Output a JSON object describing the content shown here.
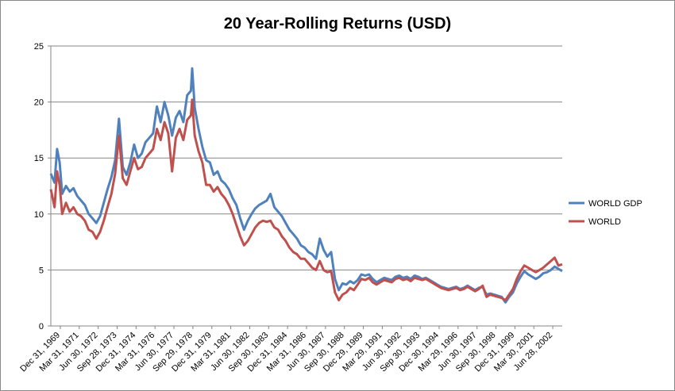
{
  "chart_data": {
    "type": "line",
    "title": "20 Year-Rolling Returns (USD)",
    "xlabel": "",
    "ylabel": "",
    "ylim": [
      0,
      25
    ],
    "yticks": [
      "0",
      "5",
      "10",
      "15",
      "20",
      "25"
    ],
    "grid": true,
    "legend_position": "right",
    "x_tick_labels": [
      "Dec 31, 1969",
      "Mar 31, 1971",
      "Jun 30, 1972",
      "Sep 28, 1973",
      "Dec 31, 1974",
      "Mar 31, 1976",
      "Jun 30, 1977",
      "Sep 29, 1978",
      "Dec 31, 1979",
      "Mar 31, 1981",
      "Jun 30, 1982",
      "Sep 30, 1983",
      "Dec 31, 1984",
      "Mar 31, 1986",
      "Jun 30, 1987",
      "Sep 30, 1988",
      "Dec 29, 1989",
      "Mar 29, 1991",
      "Jun 30, 1992",
      "Sep 30, 1993",
      "Dec 30, 1994",
      "Mar 29, 1996",
      "Jun 30, 1997",
      "Sep 30, 1998",
      "Dec 31, 1999",
      "Mar 30, 2001",
      "Jun 28, 2002"
    ],
    "x_start": "1969-12-31",
    "x_end": "2003-09-30",
    "series": [
      {
        "name": "WORLD GDP",
        "color": "#4f81bd",
        "points": [
          [
            "1969-12-31",
            13.6
          ],
          [
            "1970-03-31",
            12.8
          ],
          [
            "1970-05-31",
            15.8
          ],
          [
            "1970-07-31",
            14.6
          ],
          [
            "1970-09-30",
            11.8
          ],
          [
            "1970-12-31",
            12.5
          ],
          [
            "1971-03-31",
            12.0
          ],
          [
            "1971-06-30",
            12.3
          ],
          [
            "1971-09-30",
            11.6
          ],
          [
            "1971-12-31",
            11.2
          ],
          [
            "1972-03-31",
            10.8
          ],
          [
            "1972-06-30",
            10.0
          ],
          [
            "1972-09-30",
            9.6
          ],
          [
            "1972-12-31",
            9.2
          ],
          [
            "1973-03-31",
            9.8
          ],
          [
            "1973-06-30",
            11.0
          ],
          [
            "1973-09-28",
            12.2
          ],
          [
            "1973-12-31",
            13.3
          ],
          [
            "1974-03-31",
            14.8
          ],
          [
            "1974-06-30",
            18.5
          ],
          [
            "1974-09-30",
            14.2
          ],
          [
            "1974-12-31",
            13.5
          ],
          [
            "1975-03-31",
            14.6
          ],
          [
            "1975-06-30",
            16.2
          ],
          [
            "1975-09-30",
            15.0
          ],
          [
            "1975-12-31",
            15.4
          ],
          [
            "1976-03-31",
            16.4
          ],
          [
            "1976-06-30",
            16.8
          ],
          [
            "1976-09-30",
            17.2
          ],
          [
            "1976-12-31",
            19.6
          ],
          [
            "1977-03-31",
            18.2
          ],
          [
            "1977-06-30",
            20.0
          ],
          [
            "1977-09-30",
            18.8
          ],
          [
            "1977-12-31",
            17.0
          ],
          [
            "1978-03-31",
            18.6
          ],
          [
            "1978-06-30",
            19.2
          ],
          [
            "1978-09-29",
            18.2
          ],
          [
            "1978-12-31",
            20.6
          ],
          [
            "1979-03-31",
            21.0
          ],
          [
            "1979-04-30",
            23.0
          ],
          [
            "1979-06-30",
            19.5
          ],
          [
            "1979-09-30",
            17.6
          ],
          [
            "1979-12-31",
            16.0
          ],
          [
            "1980-03-31",
            14.8
          ],
          [
            "1980-06-30",
            14.6
          ],
          [
            "1980-09-30",
            13.5
          ],
          [
            "1980-12-31",
            13.8
          ],
          [
            "1981-03-31",
            13.0
          ],
          [
            "1981-06-30",
            12.7
          ],
          [
            "1981-09-30",
            12.2
          ],
          [
            "1981-12-31",
            11.4
          ],
          [
            "1982-03-31",
            10.8
          ],
          [
            "1982-06-30",
            9.6
          ],
          [
            "1982-09-30",
            8.6
          ],
          [
            "1982-12-31",
            9.4
          ],
          [
            "1983-03-31",
            10.0
          ],
          [
            "1983-06-30",
            10.5
          ],
          [
            "1983-09-30",
            10.8
          ],
          [
            "1983-12-31",
            11.0
          ],
          [
            "1984-03-31",
            11.2
          ],
          [
            "1984-06-30",
            11.8
          ],
          [
            "1984-09-30",
            10.6
          ],
          [
            "1984-12-31",
            10.2
          ],
          [
            "1985-03-31",
            9.8
          ],
          [
            "1985-06-30",
            9.2
          ],
          [
            "1985-09-30",
            8.6
          ],
          [
            "1985-12-31",
            8.2
          ],
          [
            "1986-03-31",
            7.8
          ],
          [
            "1986-06-30",
            7.2
          ],
          [
            "1986-09-30",
            7.0
          ],
          [
            "1986-12-31",
            6.6
          ],
          [
            "1987-03-31",
            6.4
          ],
          [
            "1987-06-30",
            6.0
          ],
          [
            "1987-09-30",
            7.8
          ],
          [
            "1987-12-31",
            6.8
          ],
          [
            "1988-03-31",
            6.2
          ],
          [
            "1988-06-30",
            6.6
          ],
          [
            "1988-09-30",
            4.2
          ],
          [
            "1988-12-31",
            3.2
          ],
          [
            "1989-03-31",
            3.8
          ],
          [
            "1989-06-30",
            3.7
          ],
          [
            "1989-09-30",
            4.0
          ],
          [
            "1989-12-29",
            3.8
          ],
          [
            "1990-03-31",
            4.1
          ],
          [
            "1990-06-30",
            4.6
          ],
          [
            "1990-09-30",
            4.5
          ],
          [
            "1990-12-31",
            4.6
          ],
          [
            "1991-03-29",
            4.2
          ],
          [
            "1991-06-30",
            3.9
          ],
          [
            "1991-09-30",
            4.1
          ],
          [
            "1991-12-31",
            4.3
          ],
          [
            "1992-03-31",
            4.2
          ],
          [
            "1992-06-30",
            4.1
          ],
          [
            "1992-09-30",
            4.4
          ],
          [
            "1992-12-31",
            4.5
          ],
          [
            "1993-03-31",
            4.3
          ],
          [
            "1993-06-30",
            4.4
          ],
          [
            "1993-09-30",
            4.2
          ],
          [
            "1993-12-31",
            4.5
          ],
          [
            "1994-03-31",
            4.4
          ],
          [
            "1994-06-30",
            4.2
          ],
          [
            "1994-09-30",
            4.3
          ],
          [
            "1994-12-30",
            4.1
          ],
          [
            "1995-03-31",
            3.9
          ],
          [
            "1995-06-30",
            3.7
          ],
          [
            "1995-09-30",
            3.5
          ],
          [
            "1995-12-31",
            3.4
          ],
          [
            "1996-03-29",
            3.3
          ],
          [
            "1996-06-30",
            3.4
          ],
          [
            "1996-09-30",
            3.5
          ],
          [
            "1996-12-31",
            3.3
          ],
          [
            "1997-03-31",
            3.4
          ],
          [
            "1997-06-30",
            3.6
          ],
          [
            "1997-09-30",
            3.4
          ],
          [
            "1997-12-31",
            3.2
          ],
          [
            "1998-03-31",
            3.4
          ],
          [
            "1998-06-30",
            3.5
          ],
          [
            "1998-09-30",
            2.8
          ],
          [
            "1998-12-31",
            2.9
          ],
          [
            "1999-03-31",
            2.8
          ],
          [
            "1999-06-30",
            2.7
          ],
          [
            "1999-09-30",
            2.6
          ],
          [
            "1999-12-31",
            2.1
          ],
          [
            "2000-03-31",
            2.6
          ],
          [
            "2000-06-30",
            3.0
          ],
          [
            "2000-09-30",
            3.8
          ],
          [
            "2000-12-31",
            4.4
          ],
          [
            "2001-03-30",
            4.9
          ],
          [
            "2001-06-30",
            4.6
          ],
          [
            "2001-09-30",
            4.4
          ],
          [
            "2001-12-31",
            4.2
          ],
          [
            "2002-03-31",
            4.4
          ],
          [
            "2002-06-28",
            4.7
          ],
          [
            "2002-09-30",
            4.8
          ],
          [
            "2002-12-31",
            5.0
          ],
          [
            "2003-03-31",
            5.3
          ],
          [
            "2003-06-30",
            5.1
          ],
          [
            "2003-09-30",
            4.9
          ]
        ]
      },
      {
        "name": "WORLD",
        "color": "#c0504d",
        "points": [
          [
            "1969-12-31",
            12.2
          ],
          [
            "1970-03-31",
            10.6
          ],
          [
            "1970-05-31",
            13.8
          ],
          [
            "1970-07-31",
            12.6
          ],
          [
            "1970-09-30",
            10.0
          ],
          [
            "1970-12-31",
            11.0
          ],
          [
            "1971-03-31",
            10.2
          ],
          [
            "1971-06-30",
            10.6
          ],
          [
            "1971-09-30",
            10.0
          ],
          [
            "1971-12-31",
            9.8
          ],
          [
            "1972-03-31",
            9.4
          ],
          [
            "1972-06-30",
            8.6
          ],
          [
            "1972-09-30",
            8.4
          ],
          [
            "1972-12-31",
            7.8
          ],
          [
            "1973-03-31",
            8.4
          ],
          [
            "1973-06-30",
            9.4
          ],
          [
            "1973-09-28",
            10.6
          ],
          [
            "1973-12-31",
            11.8
          ],
          [
            "1974-03-31",
            13.6
          ],
          [
            "1974-06-30",
            17.0
          ],
          [
            "1974-09-30",
            13.2
          ],
          [
            "1974-12-31",
            12.6
          ],
          [
            "1975-03-31",
            13.8
          ],
          [
            "1975-06-30",
            15.0
          ],
          [
            "1975-09-30",
            14.0
          ],
          [
            "1975-12-31",
            14.2
          ],
          [
            "1976-03-31",
            15.0
          ],
          [
            "1976-06-30",
            15.4
          ],
          [
            "1976-09-30",
            15.8
          ],
          [
            "1976-12-31",
            17.6
          ],
          [
            "1977-03-31",
            16.6
          ],
          [
            "1977-06-30",
            18.2
          ],
          [
            "1977-09-30",
            17.2
          ],
          [
            "1977-12-31",
            13.8
          ],
          [
            "1978-03-31",
            16.8
          ],
          [
            "1978-06-30",
            17.6
          ],
          [
            "1978-09-29",
            16.6
          ],
          [
            "1978-12-31",
            18.4
          ],
          [
            "1979-03-31",
            18.8
          ],
          [
            "1979-04-30",
            20.2
          ],
          [
            "1979-06-30",
            17.0
          ],
          [
            "1979-09-30",
            15.6
          ],
          [
            "1979-12-31",
            14.6
          ],
          [
            "1980-03-31",
            12.6
          ],
          [
            "1980-06-30",
            12.6
          ],
          [
            "1980-09-30",
            12.0
          ],
          [
            "1980-12-31",
            12.4
          ],
          [
            "1981-03-31",
            11.8
          ],
          [
            "1981-06-30",
            11.4
          ],
          [
            "1981-09-30",
            10.8
          ],
          [
            "1981-12-31",
            10.0
          ],
          [
            "1982-03-31",
            9.0
          ],
          [
            "1982-06-30",
            8.0
          ],
          [
            "1982-09-30",
            7.2
          ],
          [
            "1982-12-31",
            7.6
          ],
          [
            "1983-03-31",
            8.2
          ],
          [
            "1983-06-30",
            8.8
          ],
          [
            "1983-09-30",
            9.2
          ],
          [
            "1983-12-31",
            9.4
          ],
          [
            "1984-03-31",
            9.3
          ],
          [
            "1984-06-30",
            9.4
          ],
          [
            "1984-09-30",
            8.8
          ],
          [
            "1984-12-31",
            8.6
          ],
          [
            "1985-03-31",
            8.0
          ],
          [
            "1985-06-30",
            7.6
          ],
          [
            "1985-09-30",
            7.0
          ],
          [
            "1985-12-31",
            6.6
          ],
          [
            "1986-03-31",
            6.4
          ],
          [
            "1986-06-30",
            6.0
          ],
          [
            "1986-09-30",
            6.0
          ],
          [
            "1986-12-31",
            5.6
          ],
          [
            "1987-03-31",
            5.2
          ],
          [
            "1987-06-30",
            5.0
          ],
          [
            "1987-09-30",
            5.8
          ],
          [
            "1987-12-31",
            5.0
          ],
          [
            "1988-03-31",
            4.8
          ],
          [
            "1988-06-30",
            4.9
          ],
          [
            "1988-09-30",
            3.0
          ],
          [
            "1988-12-31",
            2.3
          ],
          [
            "1989-03-31",
            2.8
          ],
          [
            "1989-06-30",
            3.0
          ],
          [
            "1989-09-30",
            3.4
          ],
          [
            "1989-12-29",
            3.2
          ],
          [
            "1990-03-31",
            3.7
          ],
          [
            "1990-06-30",
            4.2
          ],
          [
            "1990-09-30",
            4.1
          ],
          [
            "1990-12-31",
            4.3
          ],
          [
            "1991-03-29",
            3.9
          ],
          [
            "1991-06-30",
            3.7
          ],
          [
            "1991-09-30",
            3.9
          ],
          [
            "1991-12-31",
            4.1
          ],
          [
            "1992-03-31",
            4.0
          ],
          [
            "1992-06-30",
            3.9
          ],
          [
            "1992-09-30",
            4.2
          ],
          [
            "1992-12-31",
            4.3
          ],
          [
            "1993-03-31",
            4.1
          ],
          [
            "1993-06-30",
            4.2
          ],
          [
            "1993-09-30",
            4.0
          ],
          [
            "1993-12-31",
            4.3
          ],
          [
            "1994-03-31",
            4.2
          ],
          [
            "1994-06-30",
            4.1
          ],
          [
            "1994-09-30",
            4.2
          ],
          [
            "1994-12-30",
            4.0
          ],
          [
            "1995-03-31",
            3.8
          ],
          [
            "1995-06-30",
            3.6
          ],
          [
            "1995-09-30",
            3.4
          ],
          [
            "1995-12-31",
            3.3
          ],
          [
            "1996-03-29",
            3.2
          ],
          [
            "1996-06-30",
            3.3
          ],
          [
            "1996-09-30",
            3.4
          ],
          [
            "1996-12-31",
            3.2
          ],
          [
            "1997-03-31",
            3.3
          ],
          [
            "1997-06-30",
            3.5
          ],
          [
            "1997-09-30",
            3.3
          ],
          [
            "1997-12-31",
            3.1
          ],
          [
            "1998-03-31",
            3.3
          ],
          [
            "1998-06-30",
            3.6
          ],
          [
            "1998-09-30",
            2.6
          ],
          [
            "1998-12-31",
            2.8
          ],
          [
            "1999-03-31",
            2.7
          ],
          [
            "1999-06-30",
            2.6
          ],
          [
            "1999-09-30",
            2.5
          ],
          [
            "1999-12-31",
            2.3
          ],
          [
            "2000-03-31",
            2.8
          ],
          [
            "2000-06-30",
            3.3
          ],
          [
            "2000-09-30",
            4.2
          ],
          [
            "2000-12-31",
            4.9
          ],
          [
            "2001-03-30",
            5.4
          ],
          [
            "2001-06-30",
            5.2
          ],
          [
            "2001-09-30",
            5.0
          ],
          [
            "2001-12-31",
            4.8
          ],
          [
            "2002-03-31",
            5.0
          ],
          [
            "2002-06-28",
            5.2
          ],
          [
            "2002-09-30",
            5.5
          ],
          [
            "2002-12-31",
            5.8
          ],
          [
            "2003-03-31",
            6.1
          ],
          [
            "2003-06-30",
            5.4
          ],
          [
            "2003-09-30",
            5.5
          ]
        ]
      }
    ]
  }
}
